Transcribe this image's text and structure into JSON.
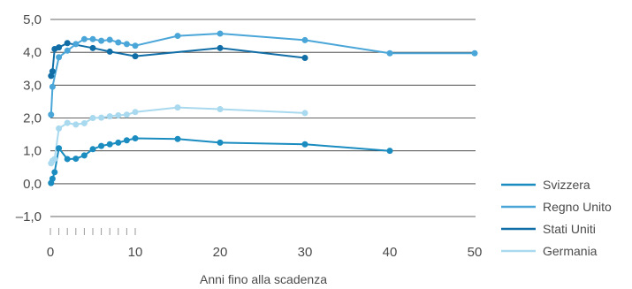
{
  "chart_data": {
    "type": "line",
    "xlabel": "Anni fino alla scadenza",
    "ylabel": "",
    "xlim": [
      0,
      50
    ],
    "ylim": [
      -1,
      5
    ],
    "x_ticks": [
      0,
      10,
      20,
      30,
      40,
      50
    ],
    "x_tick_labels": [
      "0",
      "10",
      "20",
      "30",
      "40",
      "50"
    ],
    "y_ticks": [
      5,
      4,
      3,
      2,
      1,
      0,
      -1
    ],
    "y_tick_labels": [
      "5,0",
      "4,0",
      "3,0",
      "2,0",
      "1,0",
      "0,0",
      "–1,0"
    ],
    "minor_x_ticks": [
      0,
      1,
      2,
      3,
      4,
      5,
      6,
      7,
      8,
      9,
      10
    ],
    "grid": "horizontal",
    "legend_position": "bottom-right",
    "series": [
      {
        "name": "Svizzera",
        "color": "#1a8cc0",
        "x": [
          0.08,
          0.25,
          0.5,
          1,
          2,
          3,
          4,
          5,
          6,
          7,
          8,
          9,
          10,
          15,
          20,
          30,
          40
        ],
        "y": [
          0.02,
          0.15,
          0.35,
          1.08,
          0.75,
          0.76,
          0.86,
          1.05,
          1.15,
          1.2,
          1.25,
          1.32,
          1.38,
          1.36,
          1.25,
          1.2,
          1.0
        ]
      },
      {
        "name": "Regno Unito",
        "color": "#4aa6d8",
        "x": [
          0.08,
          0.25,
          1,
          2,
          3,
          4,
          5,
          6,
          7,
          8,
          9,
          10,
          15,
          20,
          30,
          40,
          50
        ],
        "y": [
          2.1,
          2.95,
          3.85,
          4.05,
          4.25,
          4.4,
          4.4,
          4.35,
          4.38,
          4.3,
          4.25,
          4.2,
          4.5,
          4.57,
          4.37,
          3.97,
          3.97
        ]
      },
      {
        "name": "Stati Uniti",
        "color": "#106da6",
        "x": [
          0.08,
          0.25,
          0.5,
          1,
          2,
          5,
          7,
          10,
          20,
          30
        ],
        "y": [
          3.28,
          3.42,
          4.1,
          4.15,
          4.28,
          4.13,
          4.02,
          3.88,
          4.13,
          3.83
        ]
      },
      {
        "name": "Germania",
        "color": "#a9d9ee",
        "x": [
          0.08,
          0.25,
          0.5,
          1,
          2,
          3,
          4,
          5,
          6,
          7,
          8,
          9,
          10,
          15,
          20,
          30
        ],
        "y": [
          0.62,
          0.7,
          0.75,
          1.68,
          1.85,
          1.8,
          1.84,
          2.0,
          2.01,
          2.05,
          2.08,
          2.1,
          2.18,
          2.32,
          2.27,
          2.15
        ]
      }
    ]
  }
}
